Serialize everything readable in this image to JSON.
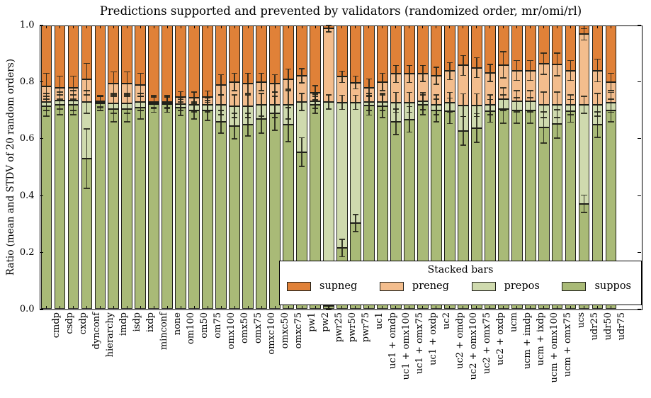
{
  "title": "Predictions supported and prevented by validators (randomized order, mr/omi/rl)",
  "ylabel": "Ratio (mean and STDV of 20 random orders)",
  "legend": {
    "title": "Stacked bars",
    "entries": [
      {
        "label": "supneg",
        "color": "#e08138"
      },
      {
        "label": "preneg",
        "color": "#f3bd8d"
      },
      {
        "label": "prepos",
        "color": "#cfdaae"
      },
      {
        "label": "suppos",
        "color": "#a9ba77"
      }
    ]
  },
  "colors": {
    "supneg": "#e08138",
    "preneg": "#f3bd8d",
    "prepos": "#cfdaae",
    "suppos": "#a9ba77",
    "bar_edge": "#20201a",
    "error_bar": "#232319",
    "axis": "#000000",
    "background": "#ffffff"
  },
  "chart_data": {
    "type": "bar",
    "stacked": true,
    "title": "Predictions supported and prevented by validators (randomized order, mr/omi/rl)",
    "xlabel": "",
    "ylabel": "Ratio (mean and STDV of 20 random orders)",
    "ylim": [
      0.0,
      1.0
    ],
    "yticks": [
      0.0,
      0.2,
      0.4,
      0.6,
      0.8,
      1.0
    ],
    "grid": false,
    "legend_position": "lower right inside",
    "stack_order_bottom_to_top": [
      "suppos",
      "prepos",
      "preneg",
      "supneg"
    ],
    "categories": [
      "cmdp",
      "csdp",
      "cxdp",
      "dynconf",
      "hierarchy",
      "imdp",
      "isdp",
      "ixdp",
      "minconf",
      "none",
      "om100",
      "om50",
      "om75",
      "omx100",
      "omx50",
      "omx75",
      "omxc100",
      "omxc50",
      "omxc75",
      "pw1",
      "pw2",
      "pwr25",
      "pwr50",
      "pwr75",
      "uc1",
      "uc1 + omdp",
      "uc1 + omx100",
      "uc1 + omx75",
      "uc1 + oxdp",
      "uc2",
      "uc2 + omdp",
      "uc2 + omx100",
      "uc2 + omx75",
      "uc2 + oxdp",
      "ucm",
      "ucm + imdp",
      "ucm + ixdp",
      "ucm + omx100",
      "ucm + omx75",
      "ucs",
      "udr25",
      "udr50",
      "udr75"
    ],
    "cumulative_tops": {
      "suppos": [
        0.715,
        0.72,
        0.72,
        0.53,
        0.725,
        0.705,
        0.705,
        0.71,
        0.723,
        0.723,
        0.71,
        0.7,
        0.7,
        0.66,
        0.645,
        0.65,
        0.67,
        0.69,
        0.65,
        0.553,
        0.72,
        0.012,
        0.215,
        0.303,
        0.718,
        0.715,
        0.66,
        0.668,
        0.72,
        0.7,
        0.698,
        0.628,
        0.638,
        0.698,
        0.705,
        0.7,
        0.7,
        0.64,
        0.652,
        0.698,
        0.371,
        0.65,
        0.7
      ],
      "prepos": [
        0.73,
        0.735,
        0.735,
        0.73,
        0.728,
        0.725,
        0.725,
        0.73,
        0.726,
        0.726,
        0.722,
        0.72,
        0.72,
        0.72,
        0.715,
        0.715,
        0.72,
        0.72,
        0.72,
        0.73,
        0.732,
        0.73,
        0.728,
        0.728,
        0.73,
        0.73,
        0.728,
        0.728,
        0.732,
        0.72,
        0.728,
        0.718,
        0.718,
        0.72,
        0.74,
        0.732,
        0.732,
        0.72,
        0.72,
        0.72,
        0.72,
        0.72,
        0.728
      ],
      "preneg": [
        0.785,
        0.78,
        0.78,
        0.81,
        0.732,
        0.795,
        0.795,
        0.79,
        0.73,
        0.73,
        0.748,
        0.745,
        0.748,
        0.79,
        0.8,
        0.795,
        0.8,
        0.795,
        0.81,
        0.822,
        0.762,
        0.988,
        0.818,
        0.798,
        0.78,
        0.8,
        0.828,
        0.828,
        0.83,
        0.822,
        0.838,
        0.858,
        0.85,
        0.832,
        0.86,
        0.84,
        0.84,
        0.864,
        0.862,
        0.84,
        0.968,
        0.84,
        0.8
      ],
      "supneg": "1.0 for every bar (stacks sum to 1.0)"
    },
    "stdv_half_lengths": {
      "suppos": [
        0.035,
        0.035,
        0.035,
        0.105,
        0.025,
        0.045,
        0.045,
        0.04,
        0.03,
        0.03,
        0.028,
        0.03,
        0.035,
        0.04,
        0.045,
        0.04,
        0.05,
        0.06,
        0.06,
        0.05,
        0.03,
        0.012,
        0.03,
        0.03,
        0.035,
        0.04,
        0.045,
        0.045,
        0.035,
        0.04,
        0.045,
        0.05,
        0.05,
        0.04,
        0.05,
        0.045,
        0.045,
        0.055,
        0.05,
        0.04,
        0.03,
        0.045,
        0.04
      ],
      "prepos": [
        0.03,
        0.03,
        0.035,
        0.04,
        0.02,
        0.035,
        0.035,
        0.03,
        0.02,
        0.02,
        0.022,
        0.025,
        0.025,
        0.035,
        0.04,
        0.04,
        0.04,
        0.045,
        0.05,
        0.03,
        0.025,
        0.025,
        0.025,
        0.025,
        0.03,
        0.03,
        0.035,
        0.035,
        0.03,
        0.035,
        0.035,
        0.04,
        0.04,
        0.035,
        0.04,
        0.038,
        0.038,
        0.045,
        0.045,
        0.035,
        0.03,
        0.04,
        0.035
      ],
      "preneg": [
        0.045,
        0.04,
        0.04,
        0.055,
        0.02,
        0.04,
        0.04,
        0.04,
        0.02,
        0.02,
        0.018,
        0.02,
        0.02,
        0.035,
        0.03,
        0.035,
        0.03,
        0.03,
        0.035,
        0.025,
        0.025,
        0.012,
        0.02,
        0.022,
        0.03,
        0.03,
        0.03,
        0.03,
        0.028,
        0.03,
        0.03,
        0.035,
        0.035,
        0.03,
        0.046,
        0.035,
        0.035,
        0.038,
        0.04,
        0.035,
        0.02,
        0.04,
        0.03
      ]
    }
  }
}
